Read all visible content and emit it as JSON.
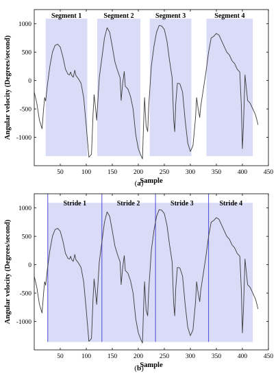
{
  "figure": {
    "caption_a": "a",
    "caption_b": "b"
  },
  "chart_data": [
    {
      "type": "line",
      "panel": "a",
      "title": "",
      "xlabel": "Sample",
      "ylabel": "Angular velocity (Degrees/second)",
      "xlim": [
        0,
        450
      ],
      "ylim": [
        -1500,
        1250
      ],
      "xticks": [
        50,
        100,
        150,
        200,
        250,
        300,
        350,
        400,
        450
      ],
      "yticks": [
        -1000,
        -500,
        0,
        500,
        1000
      ],
      "grid": false,
      "series_color": "#3a3a3a",
      "region_color": "#d9dbf7",
      "regions": [
        {
          "label": "Segment 1",
          "x0": 22,
          "x1": 102,
          "y0": -1330,
          "y1": 1090
        },
        {
          "label": "Segment 2",
          "x0": 121,
          "x1": 204,
          "y0": -1330,
          "y1": 1090
        },
        {
          "label": "Segment 3",
          "x0": 222,
          "x1": 302,
          "y0": -1330,
          "y1": 1090
        },
        {
          "label": "Segment 4",
          "x0": 331,
          "x1": 420,
          "y0": -1330,
          "y1": 1090
        }
      ],
      "x": [
        0,
        5,
        10,
        15,
        18,
        20,
        22,
        25,
        30,
        35,
        40,
        45,
        50,
        55,
        60,
        65,
        68,
        70,
        72,
        75,
        78,
        80,
        85,
        90,
        95,
        100,
        105,
        110,
        113,
        115,
        118,
        120,
        125,
        130,
        135,
        140,
        145,
        150,
        155,
        160,
        163,
        165,
        167,
        170,
        173,
        175,
        180,
        185,
        190,
        195,
        200,
        205,
        208,
        210,
        212,
        215,
        218,
        220,
        225,
        230,
        235,
        240,
        245,
        250,
        255,
        260,
        265,
        268,
        270,
        272,
        275,
        278,
        280,
        285,
        290,
        295,
        300,
        305,
        310,
        312,
        315,
        318,
        320,
        325,
        330,
        335,
        340,
        345,
        350,
        355,
        360,
        365,
        370,
        375,
        380,
        385,
        390,
        395,
        398,
        400,
        402,
        405,
        410,
        415,
        420,
        425,
        428,
        430
      ],
      "values": [
        -200,
        -400,
        -700,
        -850,
        -500,
        -300,
        -360,
        -100,
        250,
        500,
        620,
        640,
        590,
        420,
        200,
        110,
        100,
        150,
        90,
        60,
        180,
        90,
        30,
        -50,
        -300,
        -800,
        -1350,
        -1300,
        -600,
        -250,
        -500,
        -700,
        50,
        400,
        750,
        930,
        850,
        600,
        330,
        180,
        100,
        50,
        -350,
        -50,
        160,
        -100,
        -150,
        -280,
        -500,
        -950,
        -1200,
        -1320,
        -1380,
        -800,
        -300,
        -800,
        -900,
        -450,
        250,
        600,
        850,
        970,
        960,
        900,
        700,
        350,
        50,
        -700,
        -900,
        -400,
        -50,
        -50,
        -60,
        -200,
        -700,
        -1100,
        -1250,
        -1150,
        -650,
        -300,
        -500,
        -650,
        -450,
        -150,
        150,
        500,
        750,
        780,
        830,
        800,
        700,
        600,
        500,
        450,
        350,
        300,
        200,
        150,
        -450,
        -1200,
        -800,
        100,
        -350,
        -400,
        -500,
        -600,
        -700,
        -780
      ]
    },
    {
      "type": "line",
      "panel": "b",
      "title": "",
      "xlabel": "Sample",
      "ylabel": "Angular velocity (Degrees/second)",
      "xlim": [
        0,
        450
      ],
      "ylim": [
        -1500,
        1250
      ],
      "xticks": [
        50,
        100,
        150,
        200,
        250,
        300,
        350,
        400,
        450
      ],
      "yticks": [
        -1000,
        -500,
        0,
        500,
        1000
      ],
      "grid": false,
      "series_color": "#3a3a3a",
      "region_color": "#d9dbf7",
      "divider_color": "#4a4adb",
      "regions": [
        {
          "label": "Stride 1",
          "x0": 26,
          "x1": 420,
          "y0": -1360,
          "y1": 1090
        }
      ],
      "dividers": [
        {
          "x": 26,
          "y0": -1360,
          "y1": 1250
        },
        {
          "x": 130,
          "y0": -1360,
          "y1": 1250
        },
        {
          "x": 233,
          "y0": -1360,
          "y1": 1250
        },
        {
          "x": 335,
          "y0": -1360,
          "y1": 1250
        }
      ],
      "stride_labels": [
        {
          "label": "Stride 1",
          "x": 78
        },
        {
          "label": "Stride 2",
          "x": 181
        },
        {
          "label": "Stride 3",
          "x": 284
        },
        {
          "label": "Stride 4",
          "x": 378
        }
      ],
      "x": [
        0,
        5,
        10,
        15,
        18,
        20,
        22,
        25,
        30,
        35,
        40,
        45,
        50,
        55,
        60,
        65,
        68,
        70,
        72,
        75,
        78,
        80,
        85,
        90,
        95,
        100,
        105,
        110,
        113,
        115,
        118,
        120,
        125,
        130,
        135,
        140,
        145,
        150,
        155,
        160,
        163,
        165,
        167,
        170,
        173,
        175,
        180,
        185,
        190,
        195,
        200,
        205,
        208,
        210,
        212,
        215,
        218,
        220,
        225,
        230,
        235,
        240,
        245,
        250,
        255,
        260,
        265,
        268,
        270,
        272,
        275,
        278,
        280,
        285,
        290,
        295,
        300,
        305,
        310,
        312,
        315,
        318,
        320,
        325,
        330,
        335,
        340,
        345,
        350,
        355,
        360,
        365,
        370,
        375,
        380,
        385,
        390,
        395,
        398,
        400,
        402,
        405,
        410,
        415,
        420,
        425,
        428,
        430
      ],
      "values": [
        -200,
        -400,
        -700,
        -850,
        -500,
        -300,
        -360,
        -100,
        250,
        500,
        620,
        640,
        590,
        420,
        200,
        110,
        100,
        150,
        90,
        60,
        180,
        90,
        30,
        -50,
        -300,
        -800,
        -1350,
        -1300,
        -600,
        -250,
        -500,
        -700,
        50,
        400,
        750,
        930,
        850,
        600,
        330,
        180,
        100,
        50,
        -350,
        -50,
        160,
        -100,
        -150,
        -280,
        -500,
        -950,
        -1200,
        -1320,
        -1380,
        -800,
        -300,
        -800,
        -900,
        -450,
        250,
        600,
        850,
        970,
        960,
        900,
        700,
        350,
        50,
        -700,
        -900,
        -400,
        -50,
        -50,
        -60,
        -200,
        -700,
        -1100,
        -1250,
        -1150,
        -650,
        -300,
        -500,
        -650,
        -450,
        -150,
        150,
        500,
        750,
        780,
        830,
        800,
        700,
        600,
        500,
        450,
        350,
        300,
        200,
        150,
        -450,
        -1200,
        -800,
        100,
        -350,
        -400,
        -500,
        -600,
        -700,
        -780
      ]
    }
  ]
}
